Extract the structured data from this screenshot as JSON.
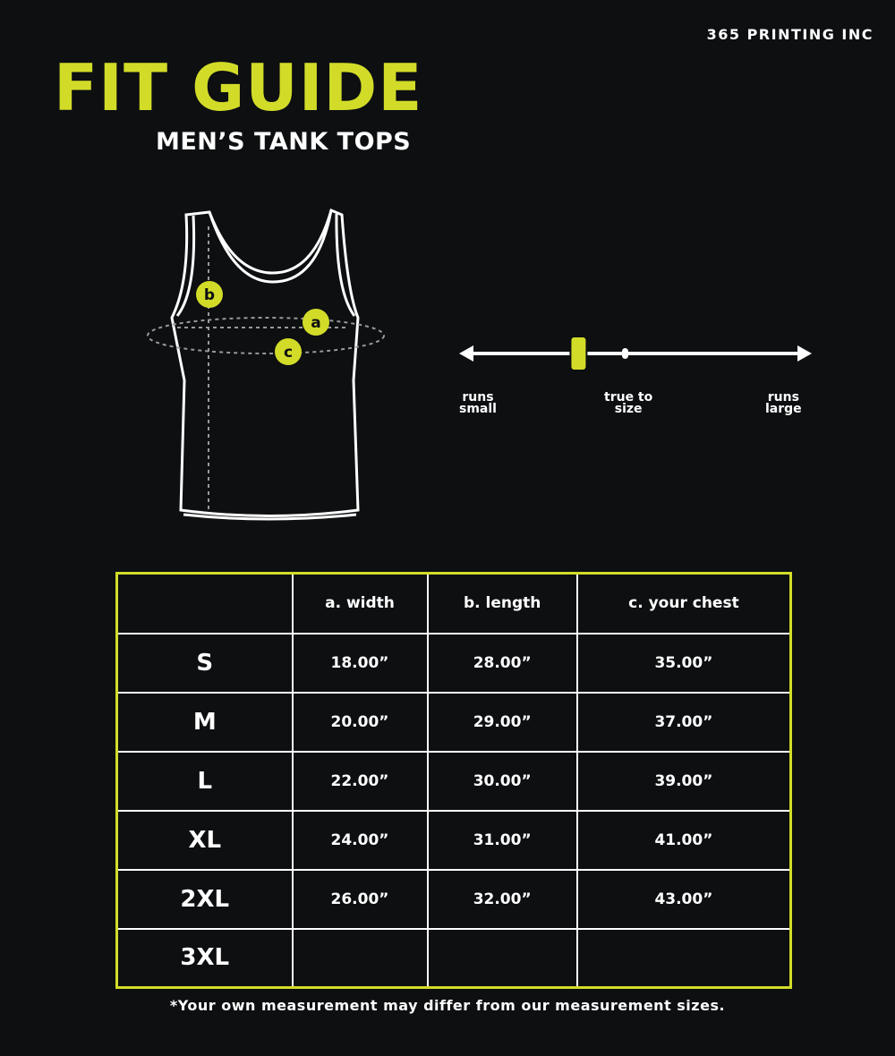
{
  "brand": "365 PRINTING INC",
  "title": "FIT GUIDE",
  "subtitle": "MEN’S TANK TOPS",
  "colors": {
    "accent": "#d2dc28",
    "background": "#0d0f11",
    "text": "#ffffff"
  },
  "diagram": {
    "markers": [
      "a",
      "b",
      "c"
    ]
  },
  "fit_scale": {
    "left_label": [
      "runs",
      "small"
    ],
    "center_label": [
      "true to",
      "size"
    ],
    "right_label": [
      "runs",
      "large"
    ],
    "indicator_position_fraction": 0.33
  },
  "table": {
    "headers": [
      "",
      "a. width",
      "b. length",
      "c. your chest"
    ],
    "rows": [
      [
        "S",
        "18.00”",
        "28.00”",
        "35.00”"
      ],
      [
        "M",
        "20.00”",
        "29.00”",
        "37.00”"
      ],
      [
        "L",
        "22.00”",
        "30.00”",
        "39.00”"
      ],
      [
        "XL",
        "24.00”",
        "31.00”",
        "41.00”"
      ],
      [
        "2XL",
        "26.00”",
        "32.00”",
        "43.00”"
      ],
      [
        "3XL",
        "",
        "",
        ""
      ]
    ]
  },
  "note": "*Your own measurement may differ from our measurement sizes."
}
